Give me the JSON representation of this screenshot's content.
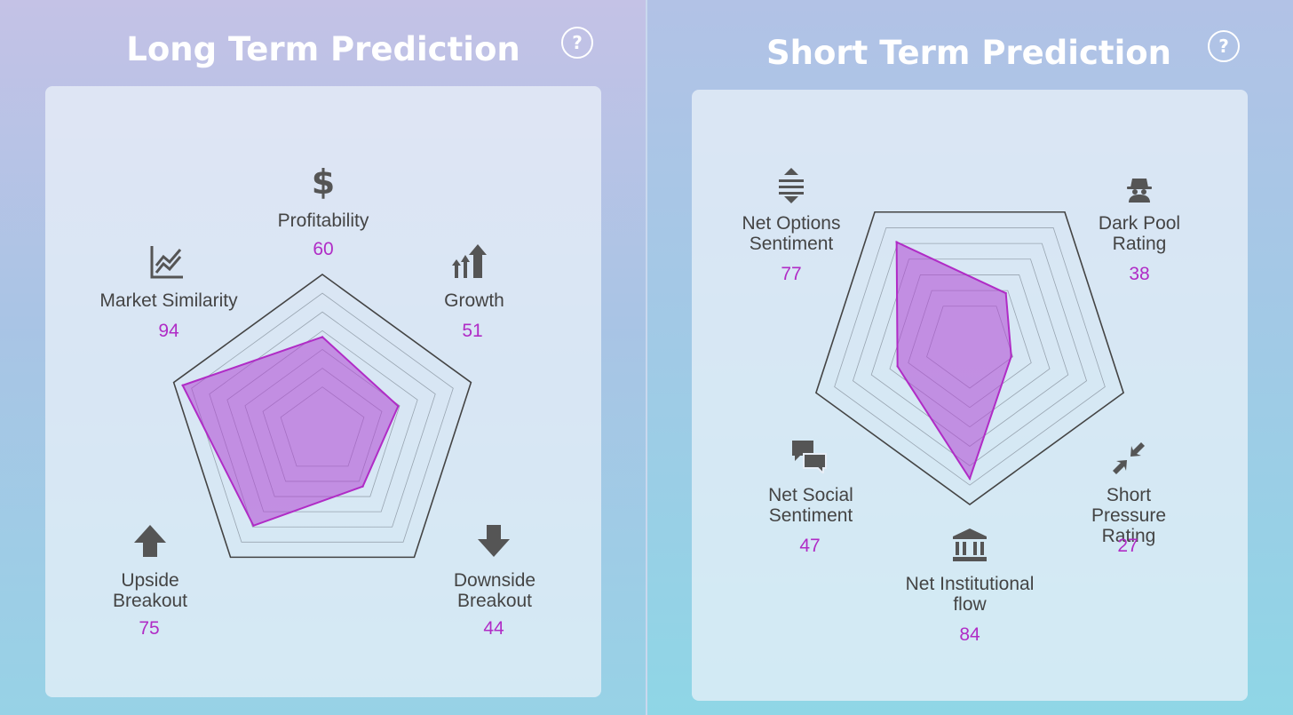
{
  "colors": {
    "accent": "#b02cc6",
    "fill": "rgba(176,70,212,0.55)",
    "text": "#444444"
  },
  "long_term": {
    "title": "Long Term Prediction",
    "help_label": "?"
  },
  "short_term": {
    "title": "Short Term Prediction",
    "help_label": "?"
  },
  "chart_data": [
    {
      "type": "radar",
      "title": "Long Term Prediction",
      "rmax": 100,
      "axes": [
        {
          "label": "Profitability",
          "value": 60,
          "icon": "dollar-icon"
        },
        {
          "label": "Growth",
          "value": 51,
          "icon": "growth-arrows-icon"
        },
        {
          "label": "Downside\nBreakout",
          "value": 44,
          "icon": "down-arrow-icon"
        },
        {
          "label": "Upside\nBreakout",
          "value": 75,
          "icon": "up-arrow-icon"
        },
        {
          "label": "Market Similarity",
          "value": 94,
          "icon": "line-chart-icon"
        }
      ]
    },
    {
      "type": "radar",
      "title": "Short Term Prediction",
      "rmax": 100,
      "axes": [
        {
          "label": "Dark Pool\nRating",
          "value": 38,
          "icon": "spy-icon"
        },
        {
          "label": "Short Pressure\nRating",
          "value": 27,
          "icon": "compress-arrows-icon"
        },
        {
          "label": "Net Institutional\nflow",
          "value": 84,
          "icon": "bank-icon"
        },
        {
          "label": "Net Social\nSentiment",
          "value": 47,
          "icon": "chat-bubbles-icon"
        },
        {
          "label": "Net Options\nSentiment",
          "value": 77,
          "icon": "vertical-arrows-icon"
        }
      ]
    }
  ]
}
